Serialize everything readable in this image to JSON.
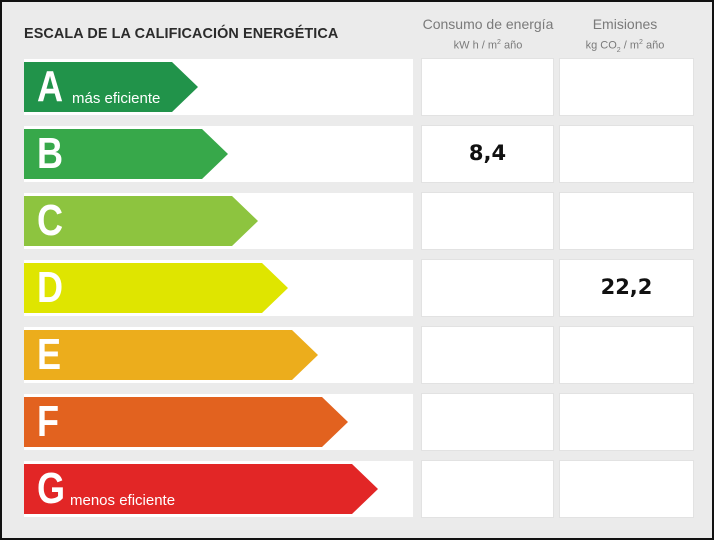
{
  "title": "ESCALA DE LA CALIFICACIÓN ENERGÉTICA",
  "columns": {
    "consumo": {
      "label": "Consumo de energía",
      "unit_prefix": "kW h / m",
      "unit_sup": "2",
      "unit_suffix": " año"
    },
    "emisiones": {
      "label": "Emisiones",
      "unit_prefix": "kg CO",
      "unit_sub": "2",
      "unit_mid": " / m",
      "unit_sup": "2",
      "unit_suffix": " año"
    }
  },
  "ratings": [
    {
      "letter": "A",
      "sublabel": "más eficiente",
      "color": "#21934a",
      "consumo": "",
      "emisiones": ""
    },
    {
      "letter": "B",
      "sublabel": "",
      "color": "#37a84a",
      "consumo": "8,4",
      "emisiones": ""
    },
    {
      "letter": "C",
      "sublabel": "",
      "color": "#8dc43f",
      "consumo": "",
      "emisiones": ""
    },
    {
      "letter": "D",
      "sublabel": "",
      "color": "#dfe500",
      "consumo": "",
      "emisiones": "22,2"
    },
    {
      "letter": "E",
      "sublabel": "",
      "color": "#ecad1c",
      "consumo": "",
      "emisiones": ""
    },
    {
      "letter": "F",
      "sublabel": "",
      "color": "#e2621f",
      "consumo": "",
      "emisiones": ""
    },
    {
      "letter": "G",
      "sublabel": "menos eficiente",
      "color": "#e22626",
      "consumo": "",
      "emisiones": ""
    }
  ]
}
